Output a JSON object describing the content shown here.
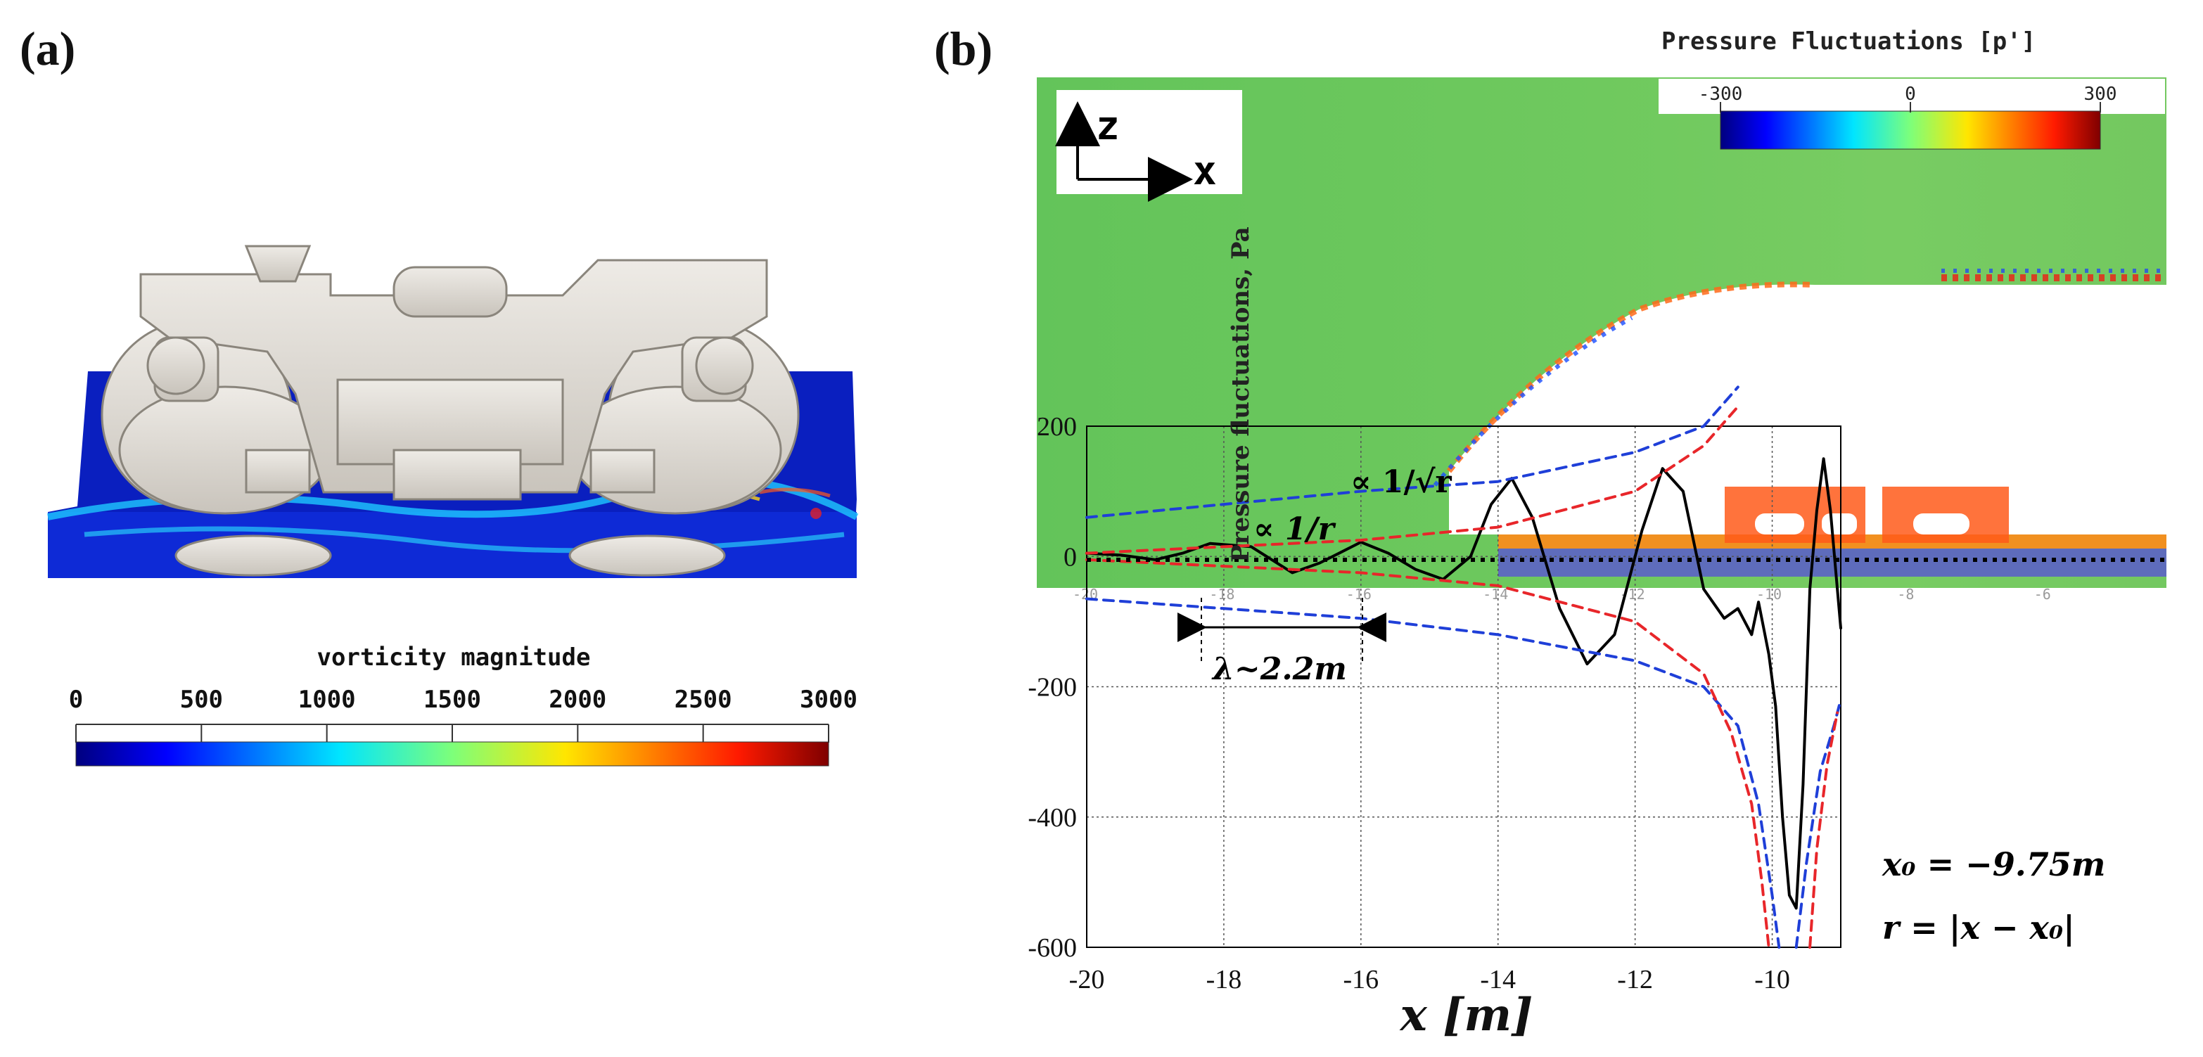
{
  "panel_a": {
    "label": "(a)",
    "colorbar": {
      "title": "vorticity magnitude",
      "ticks": [
        "0",
        "500",
        "1000",
        "1500",
        "2000",
        "2500",
        "3000"
      ],
      "range": [
        0,
        3000
      ]
    }
  },
  "panel_b": {
    "label": "(b)",
    "field_title": "Pressure Fluctuations [p']",
    "colorbar": {
      "ticks": [
        "-300",
        "0",
        "300"
      ],
      "range": [
        -300,
        300
      ]
    },
    "axes_arrows": {
      "z": "z",
      "x": "x"
    },
    "annotations": {
      "inv_sqrt_r": "∝ 1/√r",
      "inv_r": "∝ 1/r",
      "wavelength": "λ~2.2m",
      "x0": "x₀ = −9.75m",
      "r_def": "r = |x − x₀|"
    },
    "inner_x_ticks": [
      "-20",
      "-18",
      "-16",
      "-14",
      "-12",
      "-10",
      "-8",
      "-6"
    ]
  },
  "chart_data": {
    "type": "line",
    "title": "",
    "xlabel": "x [m]",
    "ylabel": "Pressure fluctuations, Pa",
    "xlim": [
      -20,
      -9
    ],
    "ylim": [
      -600,
      200
    ],
    "xticks": [
      -20,
      -18,
      -16,
      -14,
      -12,
      -10
    ],
    "yticks": [
      200,
      0,
      -200,
      -400,
      -600
    ],
    "xtick_labels": [
      "-20",
      "-18",
      "-16",
      "-14",
      "-12",
      "-10"
    ],
    "ytick_labels": [
      "200",
      "0",
      "-200",
      "-400",
      "-600"
    ],
    "series": [
      {
        "name": "Pressure fluctuations",
        "style": "solid",
        "color": "#000000",
        "x": [
          -20,
          -19.5,
          -19,
          -18.6,
          -18.2,
          -17.6,
          -17.0,
          -16.6,
          -16.0,
          -15.6,
          -15.2,
          -14.8,
          -14.4,
          -14.1,
          -13.8,
          -13.5,
          -13.1,
          -12.7,
          -12.3,
          -11.9,
          -11.6,
          -11.3,
          -11.0,
          -10.7,
          -10.5,
          -10.3,
          -10.2,
          -10.05,
          -9.95,
          -9.85,
          -9.75,
          -9.65,
          -9.55,
          -9.45,
          -9.35,
          -9.25,
          -9.15,
          -9.0
        ],
        "y": [
          5,
          2,
          -5,
          5,
          20,
          15,
          -25,
          -10,
          22,
          5,
          -20,
          -35,
          0,
          80,
          120,
          60,
          -80,
          -165,
          -120,
          40,
          135,
          100,
          -50,
          -95,
          -80,
          -120,
          -70,
          -150,
          -230,
          -400,
          -520,
          -540,
          -350,
          -50,
          70,
          150,
          70,
          -110
        ]
      },
      {
        "name": "∝ 1/√r (upper)",
        "style": "dashed",
        "color": "#1f3fd8",
        "x": [
          -20,
          -18,
          -16,
          -14,
          -12,
          -11,
          -10.5
        ],
        "y": [
          60,
          80,
          100,
          115,
          160,
          200,
          260
        ]
      },
      {
        "name": "∝ 1/√r (lower)",
        "style": "dashed",
        "color": "#1f3fd8",
        "x": [
          -20,
          -18,
          -16,
          -14,
          -12,
          -11,
          -10.5,
          -10.2,
          -10.0,
          -9.9
        ],
        "y": [
          -65,
          -80,
          -95,
          -120,
          -160,
          -200,
          -260,
          -380,
          -520,
          -600
        ]
      },
      {
        "name": "∝ 1/√r (right)",
        "style": "dashed",
        "color": "#1f3fd8",
        "x": [
          -9.65,
          -9.5,
          -9.3,
          -9.1,
          -9.0
        ],
        "y": [
          -600,
          -470,
          -330,
          -260,
          -220
        ]
      },
      {
        "name": "∝ 1/r (upper)",
        "style": "dashed",
        "color": "#e8262a",
        "x": [
          -20,
          -18,
          -16,
          -14,
          -12,
          -11,
          -10.5
        ],
        "y": [
          5,
          15,
          25,
          45,
          100,
          170,
          230
        ]
      },
      {
        "name": "∝ 1/r (lower)",
        "style": "dashed",
        "color": "#e8262a",
        "x": [
          -20,
          -18,
          -16,
          -14,
          -12,
          -11,
          -10.6,
          -10.3,
          -10.15,
          -10.05
        ],
        "y": [
          -5,
          -15,
          -25,
          -45,
          -100,
          -180,
          -270,
          -380,
          -500,
          -600
        ]
      },
      {
        "name": "∝ 1/r (right)",
        "style": "dashed",
        "color": "#e8262a",
        "x": [
          -9.45,
          -9.35,
          -9.2,
          -9.05
        ],
        "y": [
          -600,
          -450,
          -320,
          -240
        ]
      }
    ]
  }
}
